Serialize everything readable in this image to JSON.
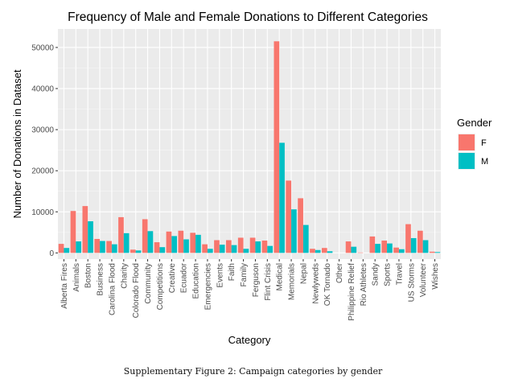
{
  "chart_data": {
    "type": "bar",
    "title": "Frequency of Male and Female Donations to Different Categories",
    "xlabel": "Category",
    "ylabel": "Number of Donations in Dataset",
    "ylim": [
      -1500,
      54500
    ],
    "yticks": [
      0,
      10000,
      20000,
      30000,
      40000,
      50000
    ],
    "ytick_labels": [
      "0",
      "10000",
      "20000",
      "30000",
      "40000",
      "50000"
    ],
    "grid": true,
    "legend": {
      "title": "Gender",
      "placement": "right"
    },
    "categories": [
      "Alberta Fires",
      "Animals",
      "Boston",
      "Business",
      "Carolina Flood",
      "Charity",
      "Colorado Flood",
      "Community",
      "Competitions",
      "Creative",
      "Ecuador",
      "Education",
      "Emergencies",
      "Events",
      "Faith",
      "Family",
      "Ferguson",
      "Flint Crisis",
      "Medical",
      "Memorials",
      "Nepal",
      "Newlyweds",
      "OK Tornado",
      "Other",
      "Philippine Relief",
      "Rio Athletes",
      "Sandy",
      "Sports",
      "Travel",
      "US Storms",
      "Volunteer",
      "Wishes"
    ],
    "series": [
      {
        "name": "F",
        "color": "#F8766D",
        "values": [
          2200,
          10200,
          11400,
          3400,
          2900,
          8700,
          800,
          8200,
          2600,
          5200,
          5400,
          4900,
          2100,
          3100,
          3100,
          3700,
          3700,
          3000,
          51500,
          17600,
          13300,
          1000,
          1200,
          0,
          2800,
          100,
          4000,
          3000,
          1300,
          7000,
          5400,
          300
        ]
      },
      {
        "name": "M",
        "color": "#00BFC4",
        "values": [
          1200,
          2800,
          7700,
          2900,
          2100,
          4800,
          600,
          5300,
          1400,
          4100,
          3300,
          4400,
          1000,
          2000,
          1900,
          1000,
          2800,
          1700,
          26800,
          10600,
          6800,
          700,
          400,
          0,
          1500,
          0,
          2200,
          2300,
          900,
          3600,
          3100,
          200
        ]
      }
    ]
  },
  "caption": "Supplementary Figure 2: Campaign categories by gender"
}
